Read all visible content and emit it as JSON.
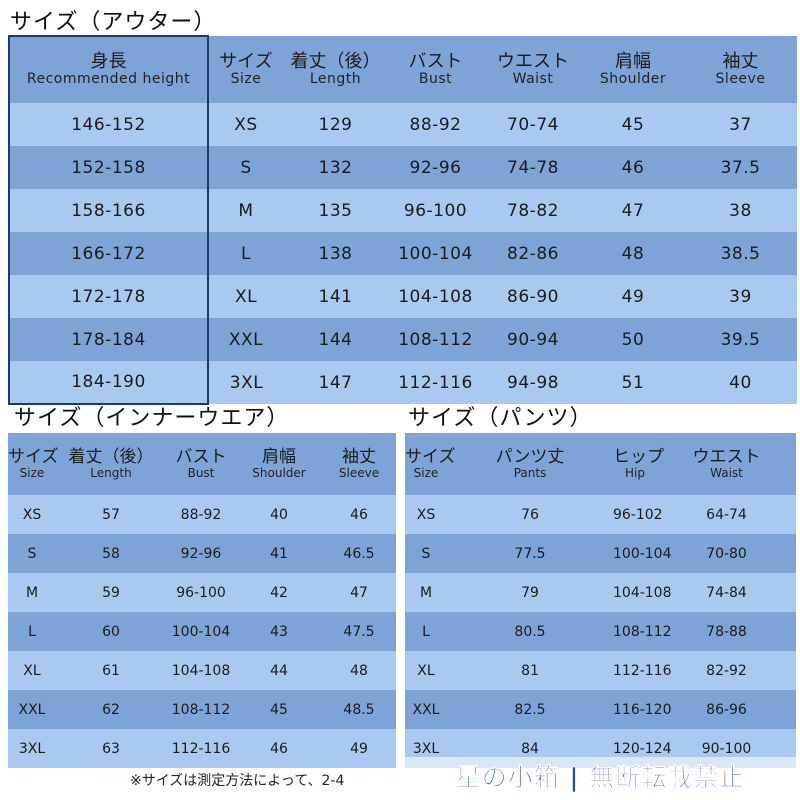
{
  "outer": {
    "title": "サイズ（アウター）",
    "headers": [
      {
        "jp": "身長",
        "en": "Recommended height"
      },
      {
        "jp": "サイズ",
        "en": "Size"
      },
      {
        "jp": "着丈（後）",
        "en": "Length"
      },
      {
        "jp": "バスト",
        "en": "Bust"
      },
      {
        "jp": "ウエスト",
        "en": "Waist"
      },
      {
        "jp": "肩幅",
        "en": "Shoulder"
      },
      {
        "jp": "袖丈",
        "en": "Sleeve"
      }
    ],
    "rows": [
      [
        "146-152",
        "XS",
        "129",
        "88-92",
        "70-74",
        "45",
        "37"
      ],
      [
        "152-158",
        "S",
        "132",
        "92-96",
        "74-78",
        "46",
        "37.5"
      ],
      [
        "158-166",
        "M",
        "135",
        "96-100",
        "78-82",
        "47",
        "38"
      ],
      [
        "166-172",
        "L",
        "138",
        "100-104",
        "82-86",
        "48",
        "38.5"
      ],
      [
        "172-178",
        "XL",
        "141",
        "104-108",
        "86-90",
        "49",
        "39"
      ],
      [
        "178-184",
        "XXL",
        "144",
        "108-112",
        "90-94",
        "50",
        "39.5"
      ],
      [
        "184-190",
        "3XL",
        "147",
        "112-116",
        "94-98",
        "51",
        "40"
      ]
    ]
  },
  "inner": {
    "title": "サイズ（インナーウエア）",
    "headers": [
      {
        "jp": "サイズ",
        "en": "Size"
      },
      {
        "jp": "着丈（後）",
        "en": "Length"
      },
      {
        "jp": "バスト",
        "en": "Bust"
      },
      {
        "jp": "肩幅",
        "en": "Shoulder"
      },
      {
        "jp": "袖丈",
        "en": "Sleeve"
      }
    ],
    "rows": [
      [
        "XS",
        "57",
        "88-92",
        "40",
        "46"
      ],
      [
        "S",
        "58",
        "92-96",
        "41",
        "46.5"
      ],
      [
        "M",
        "59",
        "96-100",
        "42",
        "47"
      ],
      [
        "L",
        "60",
        "100-104",
        "43",
        "47.5"
      ],
      [
        "XL",
        "61",
        "104-108",
        "44",
        "48"
      ],
      [
        "XXL",
        "62",
        "108-112",
        "45",
        "48.5"
      ],
      [
        "3XL",
        "63",
        "112-116",
        "46",
        "49"
      ]
    ]
  },
  "pants": {
    "title": "サイズ（パンツ）",
    "headers": [
      {
        "jp": "サイズ",
        "en": "Size"
      },
      {
        "jp": "パンツ丈",
        "en": "Pants"
      },
      {
        "jp": "ヒップ",
        "en": "Hip"
      },
      {
        "jp": "ウエスト",
        "en": "Waist"
      }
    ],
    "rows": [
      [
        "XS",
        "76",
        "96-102",
        "64-74"
      ],
      [
        "S",
        "77.5",
        "100-104",
        "70-80"
      ],
      [
        "M",
        "79",
        "104-108",
        "74-84"
      ],
      [
        "L",
        "80.5",
        "108-112",
        "78-88"
      ],
      [
        "XL",
        "81",
        "112-116",
        "82-92"
      ],
      [
        "XXL",
        "82.5",
        "116-120",
        "86-96"
      ],
      [
        "3XL",
        "84",
        "120-124",
        "90-100"
      ]
    ]
  },
  "footnote": "※サイズは測定方法によって、2-4",
  "watermark": "星の小箱 | 無断転載禁止",
  "colors": {
    "row_dark": "#7ea4d7",
    "row_light": "#aac9f1",
    "watermark_text": "#1f3fd1"
  }
}
